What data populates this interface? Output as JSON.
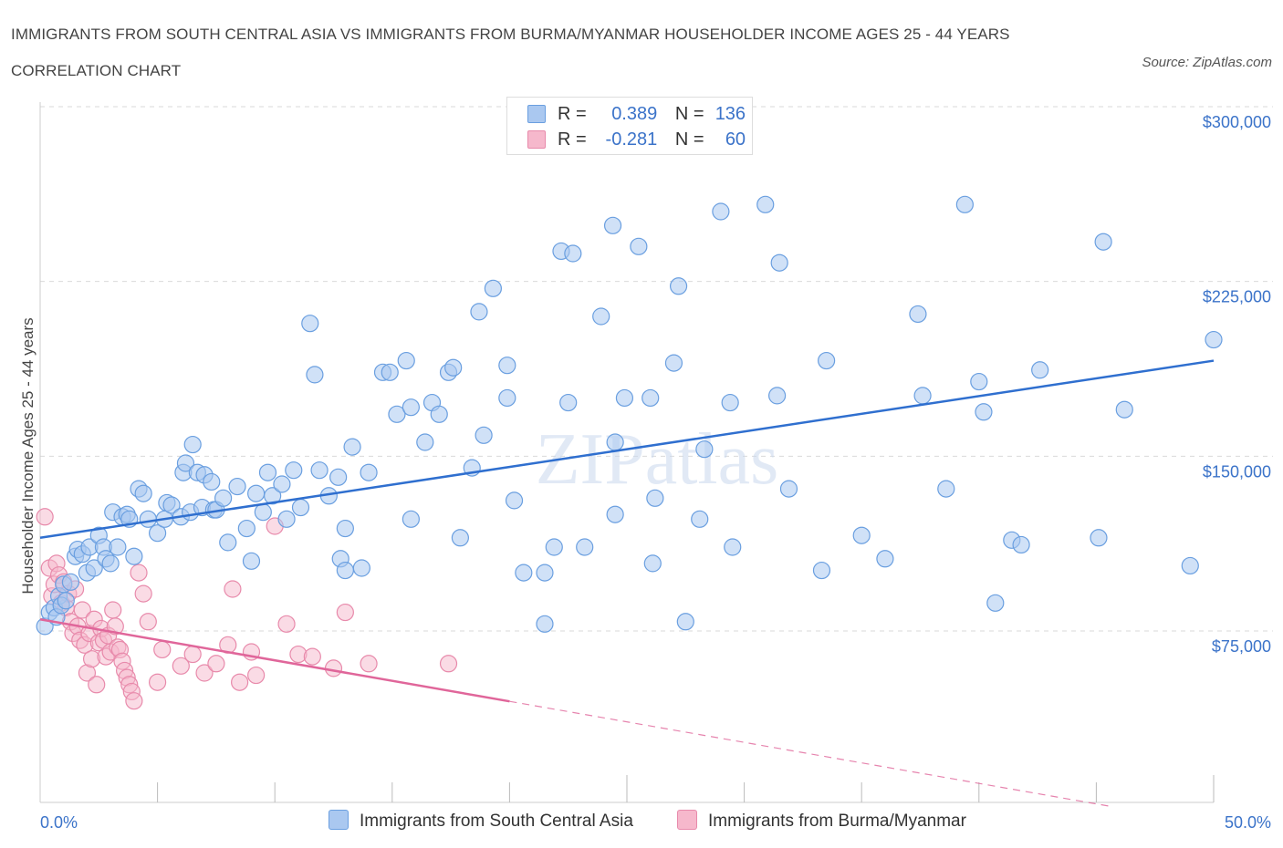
{
  "header": {
    "title": "IMMIGRANTS FROM SOUTH CENTRAL ASIA VS IMMIGRANTS FROM BURMA/MYANMAR HOUSEHOLDER INCOME AGES 25 - 44 YEARS CORRELATION CHART",
    "source": "Source: ZipAtlas.com"
  },
  "watermark": "ZIPatlas",
  "legend": {
    "r_label": "R =",
    "n_label": "N =",
    "series1": {
      "r": "0.389",
      "n": "136"
    },
    "series2": {
      "r": "-0.281",
      "n": "60"
    }
  },
  "colors": {
    "blue_fill": "#aac8f0",
    "blue_stroke": "#6a9fe0",
    "blue_line": "#2f6fcf",
    "pink_fill": "#f6b8cc",
    "pink_stroke": "#e88aab",
    "pink_line": "#e0669a",
    "grid": "#d9d9d9",
    "tick_text": "#3b73c9"
  },
  "chart_data": {
    "type": "scatter",
    "title": "IMMIGRANTS FROM SOUTH CENTRAL ASIA VS IMMIGRANTS FROM BURMA/MYANMAR HOUSEHOLDER INCOME AGES 25 - 44 YEARS CORRELATION CHART",
    "xlabel": "",
    "ylabel": "Householder Income Ages 25 - 44 years",
    "xlim": [
      0,
      50
    ],
    "ylim": [
      0,
      300000
    ],
    "x_tick_labels": [
      "0.0%",
      "50.0%"
    ],
    "y_ticks": [
      75000,
      150000,
      225000,
      300000
    ],
    "y_tick_labels": [
      "$75,000",
      "$150,000",
      "$225,000",
      "$300,000"
    ],
    "grid": true,
    "series": [
      {
        "name": "Immigrants from South Central Asia",
        "r": 0.389,
        "n": 136,
        "trend": {
          "x": [
            0,
            50
          ],
          "y": [
            115000,
            191000
          ],
          "dashed_from": null
        },
        "points": [
          [
            0.2,
            77000
          ],
          [
            0.4,
            83000
          ],
          [
            0.6,
            85000
          ],
          [
            0.7,
            81000
          ],
          [
            0.8,
            90000
          ],
          [
            0.9,
            86000
          ],
          [
            1.0,
            95000
          ],
          [
            1.1,
            88000
          ],
          [
            1.3,
            96000
          ],
          [
            1.5,
            107000
          ],
          [
            1.6,
            110000
          ],
          [
            1.8,
            108000
          ],
          [
            2.0,
            100000
          ],
          [
            2.1,
            111000
          ],
          [
            2.3,
            102000
          ],
          [
            2.5,
            116000
          ],
          [
            2.7,
            111000
          ],
          [
            2.8,
            106000
          ],
          [
            3.0,
            104000
          ],
          [
            3.1,
            126000
          ],
          [
            3.3,
            111000
          ],
          [
            3.5,
            124000
          ],
          [
            3.7,
            125000
          ],
          [
            3.8,
            123000
          ],
          [
            4.0,
            107000
          ],
          [
            4.2,
            136000
          ],
          [
            4.4,
            134000
          ],
          [
            4.6,
            123000
          ],
          [
            5.0,
            117000
          ],
          [
            5.3,
            123000
          ],
          [
            5.4,
            130000
          ],
          [
            5.6,
            129000
          ],
          [
            6.0,
            124000
          ],
          [
            6.1,
            143000
          ],
          [
            6.2,
            147000
          ],
          [
            6.4,
            126000
          ],
          [
            6.5,
            155000
          ],
          [
            6.7,
            143000
          ],
          [
            6.9,
            128000
          ],
          [
            7.0,
            142000
          ],
          [
            7.3,
            139000
          ],
          [
            7.4,
            127000
          ],
          [
            7.5,
            127000
          ],
          [
            7.8,
            132000
          ],
          [
            8.0,
            113000
          ],
          [
            8.4,
            137000
          ],
          [
            8.8,
            119000
          ],
          [
            9.0,
            105000
          ],
          [
            9.2,
            134000
          ],
          [
            9.5,
            126000
          ],
          [
            9.7,
            143000
          ],
          [
            9.9,
            133000
          ],
          [
            10.3,
            138000
          ],
          [
            10.5,
            123000
          ],
          [
            10.8,
            144000
          ],
          [
            11.1,
            128000
          ],
          [
            11.5,
            207000
          ],
          [
            11.7,
            185000
          ],
          [
            11.9,
            144000
          ],
          [
            12.3,
            133000
          ],
          [
            12.7,
            141000
          ],
          [
            12.8,
            106000
          ],
          [
            13.0,
            101000
          ],
          [
            13.0,
            119000
          ],
          [
            13.3,
            154000
          ],
          [
            13.7,
            102000
          ],
          [
            14.0,
            143000
          ],
          [
            14.6,
            186000
          ],
          [
            14.9,
            186000
          ],
          [
            15.2,
            168000
          ],
          [
            15.6,
            191000
          ],
          [
            15.8,
            171000
          ],
          [
            15.8,
            123000
          ],
          [
            16.4,
            156000
          ],
          [
            16.7,
            173000
          ],
          [
            17.0,
            168000
          ],
          [
            17.4,
            186000
          ],
          [
            17.6,
            188000
          ],
          [
            17.9,
            115000
          ],
          [
            18.4,
            145000
          ],
          [
            18.7,
            212000
          ],
          [
            18.9,
            159000
          ],
          [
            19.3,
            222000
          ],
          [
            19.9,
            175000
          ],
          [
            19.9,
            189000
          ],
          [
            20.2,
            131000
          ],
          [
            20.6,
            100000
          ],
          [
            21.5,
            78000
          ],
          [
            21.5,
            100000
          ],
          [
            21.9,
            111000
          ],
          [
            22.2,
            238000
          ],
          [
            22.5,
            173000
          ],
          [
            22.7,
            237000
          ],
          [
            23.2,
            111000
          ],
          [
            23.9,
            210000
          ],
          [
            24.4,
            249000
          ],
          [
            24.5,
            156000
          ],
          [
            24.5,
            125000
          ],
          [
            24.9,
            175000
          ],
          [
            25.5,
            240000
          ],
          [
            26.0,
            175000
          ],
          [
            26.1,
            104000
          ],
          [
            26.2,
            132000
          ],
          [
            27.0,
            190000
          ],
          [
            27.2,
            223000
          ],
          [
            27.5,
            79000
          ],
          [
            28.1,
            123000
          ],
          [
            28.3,
            153000
          ],
          [
            29.0,
            255000
          ],
          [
            29.4,
            173000
          ],
          [
            29.5,
            111000
          ],
          [
            30.9,
            258000
          ],
          [
            31.5,
            233000
          ],
          [
            31.4,
            176000
          ],
          [
            31.9,
            136000
          ],
          [
            33.3,
            101000
          ],
          [
            33.5,
            191000
          ],
          [
            35.0,
            116000
          ],
          [
            36.0,
            106000
          ],
          [
            37.4,
            211000
          ],
          [
            37.6,
            176000
          ],
          [
            38.6,
            136000
          ],
          [
            39.4,
            258000
          ],
          [
            40.0,
            182000
          ],
          [
            40.2,
            169000
          ],
          [
            40.7,
            87000
          ],
          [
            41.4,
            114000
          ],
          [
            41.8,
            112000
          ],
          [
            42.6,
            187000
          ],
          [
            45.1,
            115000
          ],
          [
            45.3,
            242000
          ],
          [
            46.2,
            170000
          ],
          [
            49.0,
            103000
          ],
          [
            50.0,
            200000
          ]
        ]
      },
      {
        "name": "Immigrants from Burma/Myanmar",
        "r": -0.281,
        "n": 60,
        "trend": {
          "x": [
            0,
            50
          ],
          "y": [
            80000,
            -8000
          ],
          "dashed_from": 20
        },
        "points": [
          [
            0.2,
            124000
          ],
          [
            0.4,
            102000
          ],
          [
            0.5,
            90000
          ],
          [
            0.6,
            95000
          ],
          [
            0.7,
            104000
          ],
          [
            0.8,
            99000
          ],
          [
            0.9,
            87000
          ],
          [
            1.0,
            96000
          ],
          [
            1.1,
            85000
          ],
          [
            1.2,
            91000
          ],
          [
            1.3,
            79000
          ],
          [
            1.4,
            74000
          ],
          [
            1.5,
            93000
          ],
          [
            1.6,
            77000
          ],
          [
            1.7,
            71000
          ],
          [
            1.8,
            84000
          ],
          [
            1.9,
            69000
          ],
          [
            2.0,
            57000
          ],
          [
            2.1,
            74000
          ],
          [
            2.2,
            63000
          ],
          [
            2.3,
            80000
          ],
          [
            2.4,
            52000
          ],
          [
            2.5,
            70000
          ],
          [
            2.6,
            76000
          ],
          [
            2.7,
            71000
          ],
          [
            2.8,
            64000
          ],
          [
            2.9,
            73000
          ],
          [
            3.0,
            66000
          ],
          [
            3.1,
            84000
          ],
          [
            3.2,
            77000
          ],
          [
            3.3,
            68000
          ],
          [
            3.4,
            67000
          ],
          [
            3.5,
            62000
          ],
          [
            3.6,
            58000
          ],
          [
            3.7,
            55000
          ],
          [
            3.8,
            52000
          ],
          [
            3.9,
            49000
          ],
          [
            4.0,
            45000
          ],
          [
            4.2,
            100000
          ],
          [
            4.4,
            91000
          ],
          [
            4.6,
            79000
          ],
          [
            5.0,
            53000
          ],
          [
            5.2,
            67000
          ],
          [
            6.0,
            60000
          ],
          [
            6.5,
            65000
          ],
          [
            7.0,
            57000
          ],
          [
            7.5,
            61000
          ],
          [
            8.0,
            69000
          ],
          [
            8.2,
            93000
          ],
          [
            8.5,
            53000
          ],
          [
            9.0,
            66000
          ],
          [
            9.2,
            56000
          ],
          [
            10.0,
            120000
          ],
          [
            10.5,
            78000
          ],
          [
            11.0,
            65000
          ],
          [
            11.6,
            64000
          ],
          [
            12.5,
            59000
          ],
          [
            13.0,
            83000
          ],
          [
            14.0,
            61000
          ],
          [
            17.4,
            61000
          ]
        ]
      }
    ]
  },
  "bottom_legend": {
    "series1": "Immigrants from South Central Asia",
    "series2": "Immigrants from Burma/Myanmar"
  }
}
